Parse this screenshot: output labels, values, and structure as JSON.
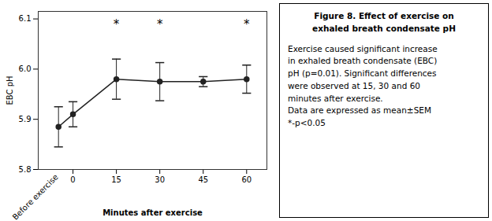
{
  "chart_data": {
    "type": "line",
    "x": [
      -5,
      0,
      15,
      30,
      45,
      60
    ],
    "values": [
      5.885,
      5.91,
      5.98,
      5.975,
      5.975,
      5.98
    ],
    "errors": [
      0.04,
      0.025,
      0.04,
      0.038,
      0.01,
      0.028
    ],
    "color": "#222222",
    "marker": "o",
    "xlim": [
      -12,
      67
    ],
    "xticks": [
      0,
      15,
      30,
      45,
      60
    ],
    "ylim": [
      5.8,
      6.115
    ],
    "yticks": [
      5.8,
      5.9,
      {
        "value": 6.0,
        "label": "6.0"
      },
      6.1
    ],
    "xlabel": "Minutes after exercise",
    "ylabel": "EBC pH",
    "grid": false,
    "annotations": [
      {
        "x": -5,
        "text": "Before exercise"
      },
      {
        "x": 15,
        "y": 6.09,
        "text": "*"
      },
      {
        "x": 30,
        "y": 6.09,
        "text": "*"
      },
      {
        "x": 60,
        "y": 6.09,
        "text": "*"
      }
    ],
    "caption_title": [
      "Figure 8. Effect of exercise on",
      "exhaled breath condensate pH"
    ],
    "caption_lines": [
      "Exercise caused significant increase",
      "in exhaled breath condensate (EBC)",
      "pH (p=0.01). Significant differences",
      "were observed at 15, 30 and 60",
      "minutes after exercise.",
      "Data are expressed as mean±SEM",
      "*-p<0.05"
    ]
  }
}
